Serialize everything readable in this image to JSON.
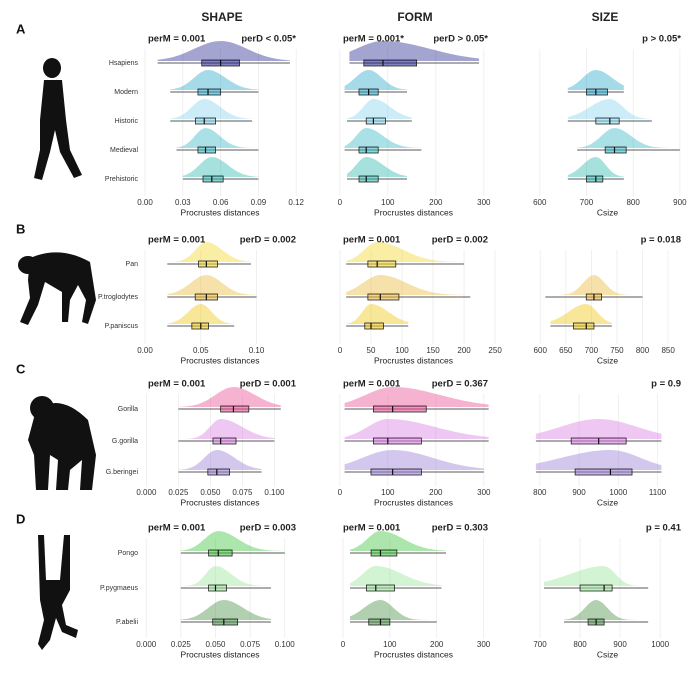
{
  "column_titles": [
    "SHAPE",
    "FORM",
    "SIZE"
  ],
  "panel_labels": [
    "A",
    "B",
    "C",
    "D"
  ],
  "chart_data": [
    {
      "type": "box",
      "annotations": [
        "perM = 0.001",
        "perD < 0.05*"
      ],
      "xlabel": "Procrustes distances",
      "categories": [
        "Hsapiens",
        "Modern",
        "Historic",
        "Medieval",
        "Prehistoric"
      ],
      "colors": [
        "#1c1c8a",
        "#1fa3c8",
        "#7fd3ec",
        "#27b4c2",
        "#22b3aa"
      ],
      "boxes": [
        [
          0.01,
          0.045,
          0.06,
          0.075,
          0.115
        ],
        [
          0.02,
          0.042,
          0.05,
          0.06,
          0.09
        ],
        [
          0.02,
          0.04,
          0.047,
          0.056,
          0.085
        ],
        [
          0.025,
          0.042,
          0.048,
          0.056,
          0.09
        ],
        [
          0.03,
          0.046,
          0.053,
          0.062,
          0.09
        ]
      ],
      "xlim": [
        -0.004,
        0.123
      ],
      "xticks": [
        {
          "value": 0,
          "label": "0.00"
        },
        0.03,
        0.06,
        0.09,
        0.12
      ]
    },
    {
      "type": "box",
      "annotations": [
        "perM = 0.001*",
        "perD > 0.05*"
      ],
      "xlabel": "Procrustes distances",
      "colors": [
        "#1c1c8a",
        "#1fa3c8",
        "#7fd3ec",
        "#27b4c2",
        "#22b3aa"
      ],
      "boxes": [
        [
          20,
          50,
          90,
          160,
          290
        ],
        [
          10,
          40,
          60,
          80,
          140
        ],
        [
          15,
          55,
          70,
          95,
          150
        ],
        [
          10,
          40,
          55,
          80,
          170
        ],
        [
          15,
          40,
          55,
          80,
          140
        ]
      ],
      "xlim": [
        -10,
        317
      ],
      "xticks": [
        0,
        100,
        200,
        300
      ]
    },
    {
      "type": "box",
      "annotations": [
        "p > 0.05*"
      ],
      "xlabel": "Csize",
      "colors": [
        "#1c1c8a",
        "#1fa3c8",
        "#7fd3ec",
        "#27b4c2",
        "#22b3aa"
      ],
      "boxes": [
        null,
        [
          660,
          700,
          720,
          745,
          780
        ],
        [
          660,
          720,
          750,
          770,
          840
        ],
        [
          680,
          740,
          760,
          785,
          900
        ],
        [
          660,
          700,
          720,
          735,
          780
        ]
      ],
      "xlim": [
        579,
        911
      ],
      "xticks": [
        600,
        700,
        800,
        900
      ]
    },
    {
      "type": "box",
      "annotations": [
        "perM = 0.001",
        "perD = 0.002"
      ],
      "xlabel": "Procrustes distances",
      "categories": [
        "Pan",
        "P.troglodytes",
        "P.paniscus"
      ],
      "colors": [
        "#f3d21c",
        "#e9b52c",
        "#f0c400"
      ],
      "boxes": [
        [
          0.02,
          0.048,
          0.055,
          0.065,
          0.095
        ],
        [
          0.02,
          0.045,
          0.055,
          0.065,
          0.1
        ],
        [
          0.02,
          0.042,
          0.05,
          0.057,
          0.08
        ]
      ],
      "xlim": [
        -0.0045,
        0.139
      ],
      "xticks": [
        {
          "value": 0,
          "label": "0.00"
        },
        0.05,
        {
          "value": 0.1,
          "label": "0.10"
        }
      ]
    },
    {
      "type": "box",
      "annotations": [
        "perM = 0.001",
        "perD = 0.002"
      ],
      "xlabel": "Procrustes distances",
      "colors": [
        "#f3d21c",
        "#e9b52c",
        "#f0c400"
      ],
      "boxes": [
        [
          10,
          45,
          60,
          90,
          200
        ],
        [
          10,
          45,
          65,
          95,
          210
        ],
        [
          10,
          40,
          50,
          70,
          110
        ]
      ],
      "xlim": [
        -8,
        245
      ],
      "xticks": [
        0,
        50,
        100,
        150,
        200,
        250
      ]
    },
    {
      "type": "box",
      "annotations": [
        "p = 0.018"
      ],
      "xlabel": "Csize",
      "colors": [
        "#f3d21c",
        "#e9b52c",
        "#f0c400"
      ],
      "boxes": [
        null,
        [
          610,
          690,
          705,
          720,
          800
        ],
        [
          620,
          665,
          690,
          705,
          740
        ]
      ],
      "xlim": [
        580,
        883
      ],
      "xticks": [
        600,
        650,
        700,
        750,
        800,
        850
      ]
    },
    {
      "type": "box",
      "annotations": [
        "perM = 0.001",
        "perD = 0.001"
      ],
      "xlabel": "Procrustes distances",
      "categories": [
        "Gorilla",
        "G.gorilla",
        "G.beringei"
      ],
      "colors": [
        "#e8428c",
        "#d872e2",
        "#9474d4"
      ],
      "boxes": [
        [
          0.025,
          0.058,
          0.068,
          0.08,
          0.105
        ],
        [
          0.025,
          0.052,
          0.058,
          0.07,
          0.1
        ],
        [
          0.025,
          0.048,
          0.055,
          0.065,
          0.09
        ]
      ],
      "xlim": [
        -0.005,
        0.12
      ],
      "xticks": [
        {
          "value": 0,
          "label": "0.000"
        },
        0.025,
        {
          "value": 0.05,
          "label": "0.050"
        },
        0.075,
        {
          "value": 0.1,
          "label": "0.100"
        }
      ]
    },
    {
      "type": "box",
      "annotations": [
        "perM = 0.001",
        "perD = 0.367"
      ],
      "xlabel": "Procrustes distances",
      "colors": [
        "#e8428c",
        "#d872e2",
        "#9474d4"
      ],
      "boxes": [
        [
          10,
          70,
          110,
          180,
          310
        ],
        [
          10,
          70,
          100,
          170,
          310
        ],
        [
          10,
          65,
          110,
          170,
          300
        ]
      ],
      "xlim": [
        -10,
        317
      ],
      "xticks": [
        0,
        100,
        200,
        300
      ]
    },
    {
      "type": "box",
      "annotations": [
        "p = 0.9"
      ],
      "xlabel": "Csize",
      "colors": [
        "#e8428c",
        "#d872e2",
        "#9474d4"
      ],
      "boxes": [
        null,
        [
          790,
          880,
          950,
          1020,
          1110
        ],
        [
          790,
          890,
          980,
          1035,
          1110
        ]
      ],
      "xlim": [
        775,
        1170
      ],
      "xticks": [
        800,
        900,
        1000,
        1100
      ]
    },
    {
      "type": "box",
      "annotations": [
        "perM = 0.001",
        "perD = 0.003"
      ],
      "xlabel": "Procrustes distances",
      "categories": [
        "Pongo",
        "P.pygmaeus",
        "P.abelii"
      ],
      "colors": [
        "#2fc12f",
        "#92e392",
        "#3a8a3a"
      ],
      "boxes": [
        [
          0.025,
          0.045,
          0.052,
          0.062,
          0.1
        ],
        [
          0.025,
          0.045,
          0.05,
          0.058,
          0.09
        ],
        [
          0.025,
          0.048,
          0.056,
          0.066,
          0.09
        ]
      ],
      "xlim": [
        -0.0045,
        0.111
      ],
      "xticks": [
        {
          "value": 0,
          "label": "0.000"
        },
        0.025,
        {
          "value": 0.05,
          "label": "0.050"
        },
        0.075,
        {
          "value": 0.1,
          "label": "0.100"
        }
      ]
    },
    {
      "type": "box",
      "annotations": [
        "perM = 0.001",
        "perD = 0.303"
      ],
      "xlabel": "Procrustes distances",
      "colors": [
        "#2fc12f",
        "#92e392",
        "#3a8a3a"
      ],
      "boxes": [
        [
          15,
          60,
          80,
          115,
          220
        ],
        [
          15,
          50,
          70,
          110,
          210
        ],
        [
          15,
          55,
          80,
          100,
          200
        ]
      ],
      "xlim": [
        -17,
        318
      ],
      "xticks": [
        0,
        100,
        200,
        300
      ]
    },
    {
      "type": "box",
      "annotations": [
        "p = 0.41"
      ],
      "xlabel": "Csize",
      "colors": [
        "#2fc12f",
        "#92e392",
        "#3a8a3a"
      ],
      "boxes": [
        null,
        [
          710,
          800,
          860,
          880,
          970
        ],
        [
          760,
          820,
          840,
          860,
          970
        ]
      ],
      "xlim": [
        675,
        1062
      ],
      "xticks": [
        700,
        800,
        900,
        1000
      ]
    }
  ]
}
